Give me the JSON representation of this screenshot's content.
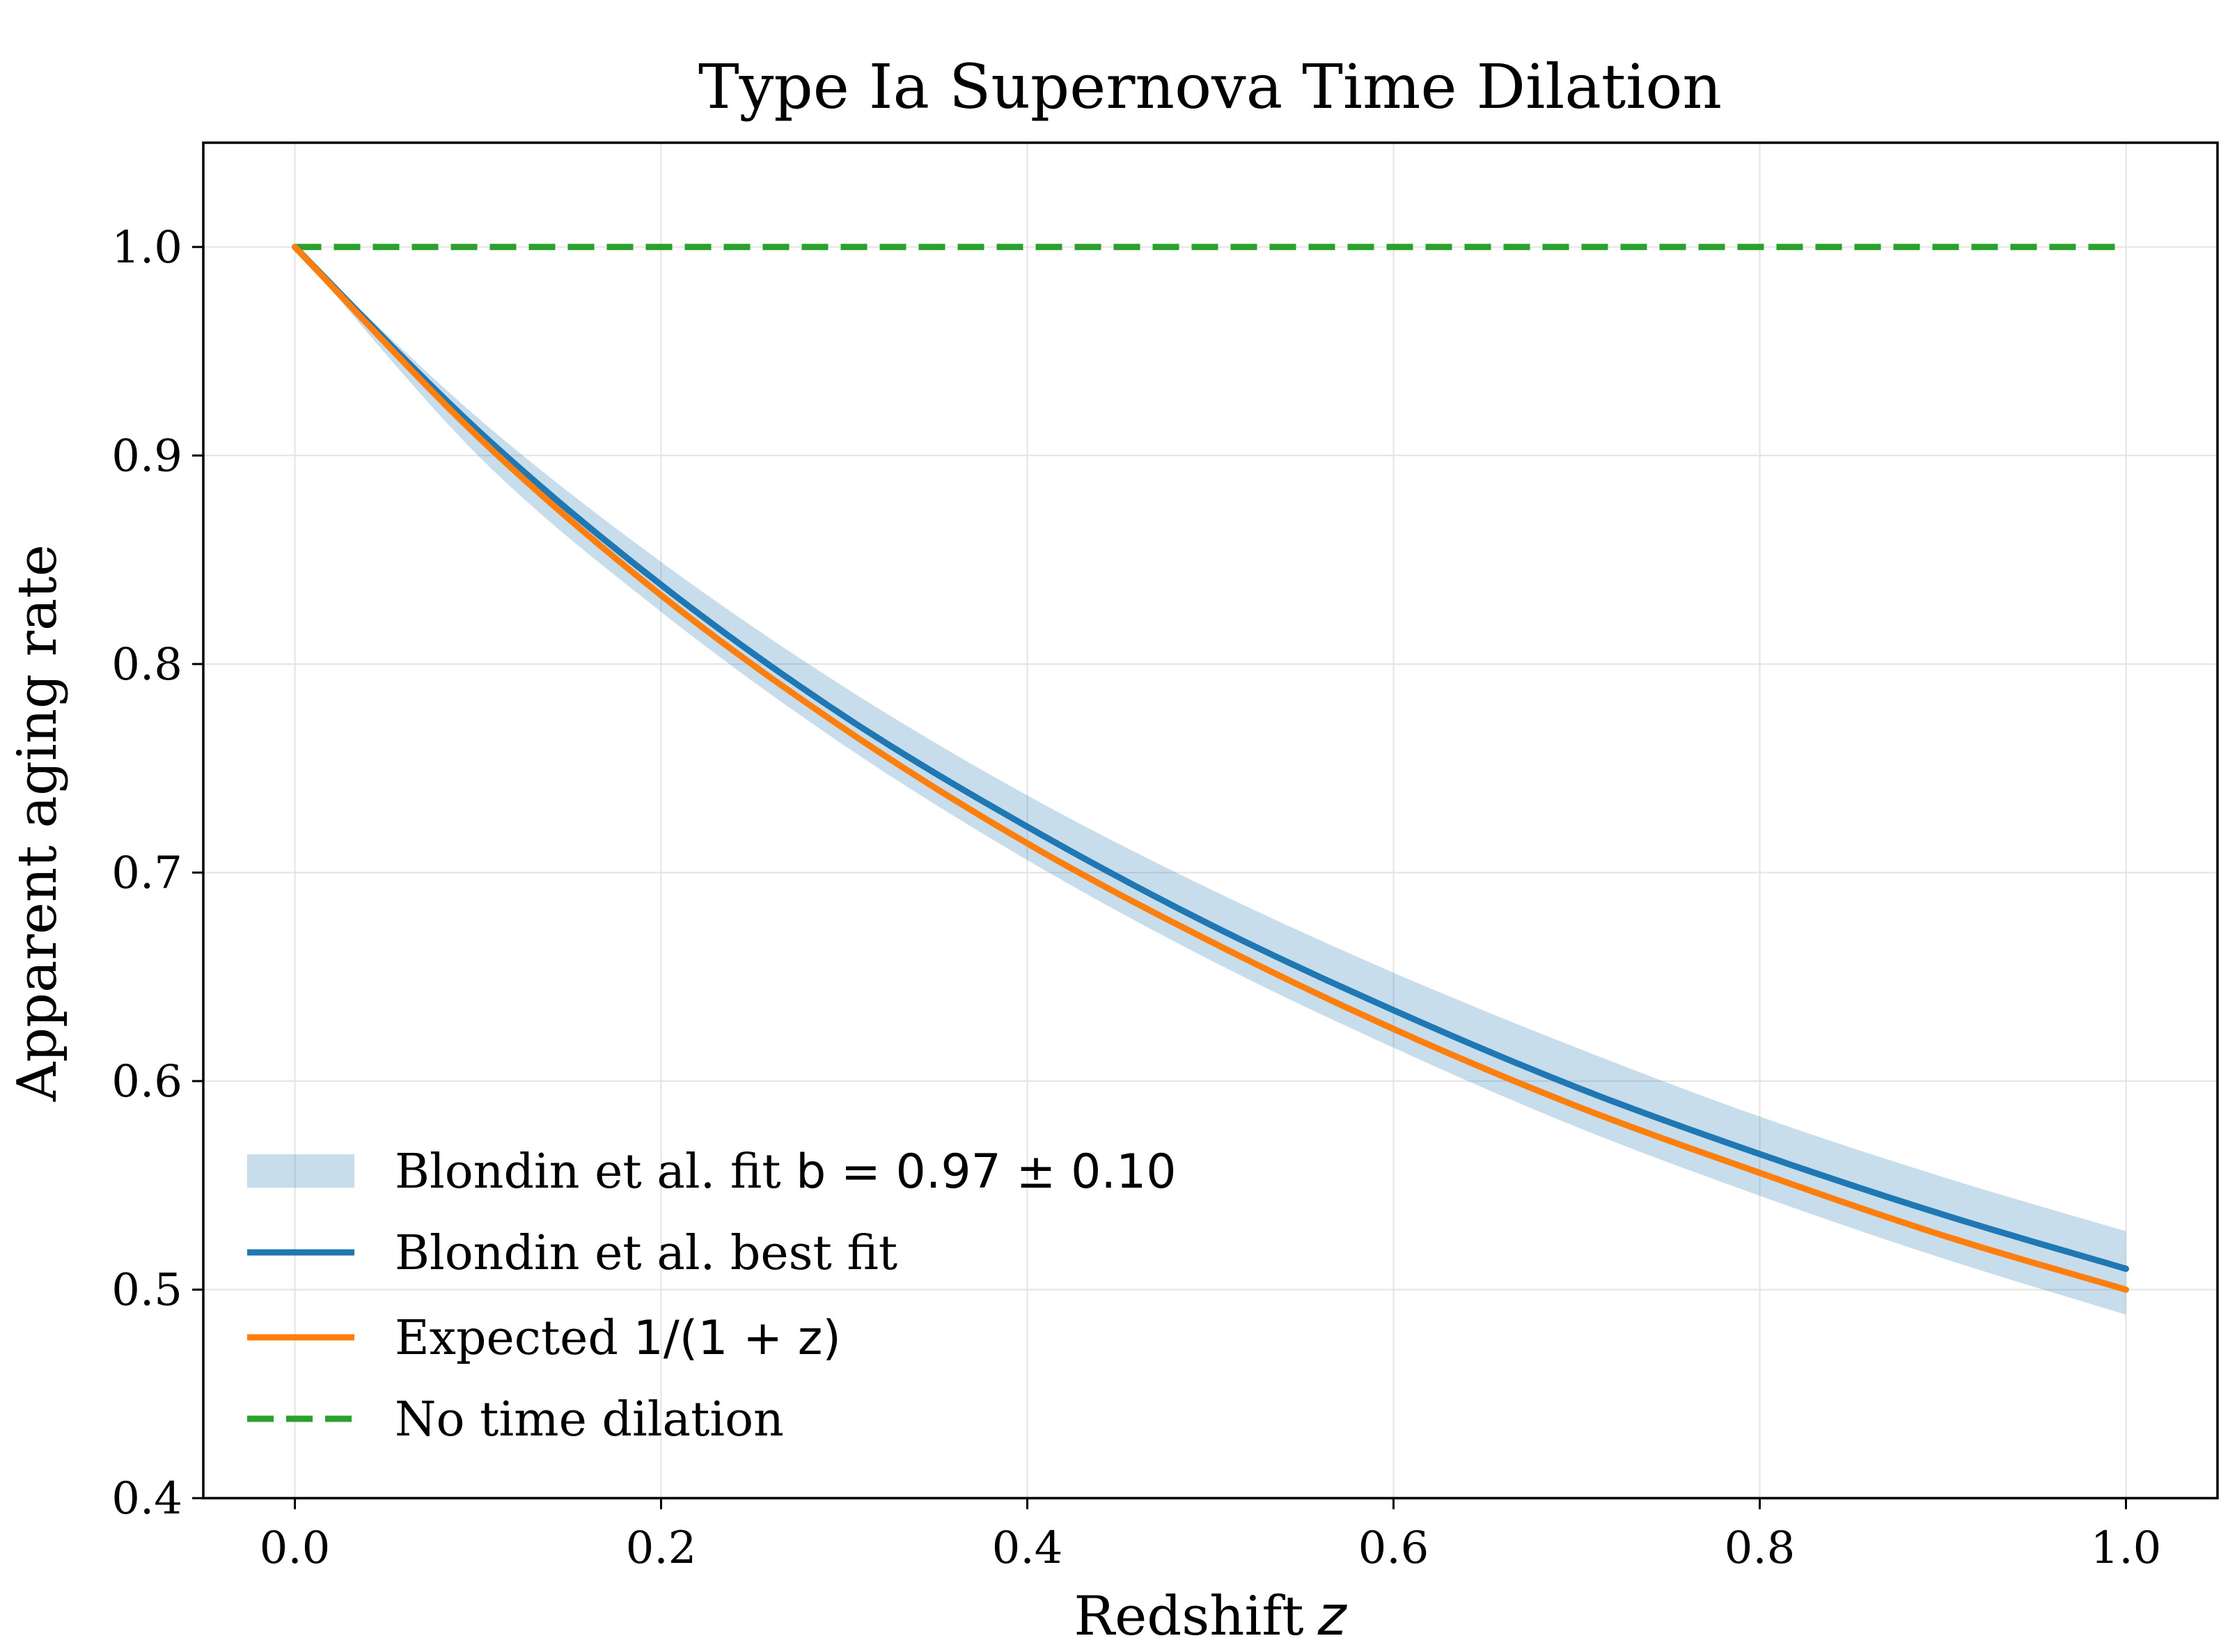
{
  "chart_data": {
    "type": "line",
    "title": "Type Ia Supernova Time Dilation",
    "xlabel": "Redshift",
    "xlabel_symbol": "z",
    "ylabel": "Apparent aging rate",
    "xlim": [
      -0.05,
      1.05
    ],
    "ylim": [
      0.4,
      1.05
    ],
    "xticks": [
      0.0,
      0.2,
      0.4,
      0.6,
      0.8,
      1.0
    ],
    "xtick_labels": [
      "0.0",
      "0.2",
      "0.4",
      "0.6",
      "0.8",
      "1.0"
    ],
    "yticks": [
      0.4,
      0.5,
      0.6,
      0.7,
      0.8,
      0.9,
      1.0
    ],
    "ytick_labels": [
      "0.4",
      "0.5",
      "0.6",
      "0.7",
      "0.8",
      "0.9",
      "1.0"
    ],
    "grid": true,
    "legend_position": "lower-left",
    "x": [
      0.0,
      0.1,
      0.2,
      0.3,
      0.4,
      0.5,
      0.6,
      0.7,
      0.8,
      0.9,
      1.0
    ],
    "band": {
      "name": "Blondin et al. fit b = 0.97 ± 0.10",
      "color": "#1f77b4",
      "opacity": 0.25,
      "lower": [
        1.0,
        0.9,
        0.825,
        0.761,
        0.706,
        0.658,
        0.616,
        0.578,
        0.545,
        0.515,
        0.488
      ],
      "upper": [
        1.0,
        0.918,
        0.849,
        0.789,
        0.737,
        0.692,
        0.652,
        0.616,
        0.583,
        0.554,
        0.528
      ]
    },
    "series": [
      {
        "name": "Blondin et al. best fit",
        "color": "#1f77b4",
        "style": "solid",
        "values": [
          1.0,
          0.912,
          0.838,
          0.775,
          0.722,
          0.675,
          0.634,
          0.597,
          0.565,
          0.536,
          0.51
        ]
      },
      {
        "name": "Expected 1/(1 + z)",
        "color": "#ff7f0e",
        "style": "solid",
        "values": [
          1.0,
          0.909,
          0.833,
          0.769,
          0.714,
          0.667,
          0.625,
          0.588,
          0.556,
          0.526,
          0.5
        ]
      },
      {
        "name": "No time dilation",
        "color": "#2ca02c",
        "style": "dashed",
        "values": [
          1.0,
          1.0,
          1.0,
          1.0,
          1.0,
          1.0,
          1.0,
          1.0,
          1.0,
          1.0,
          1.0
        ]
      }
    ],
    "legend": [
      {
        "key": "band",
        "prefix": "Blondin et al. fit ",
        "math": "b = 0.97 ± 0.10"
      },
      {
        "key": "blondin",
        "prefix": "Blondin et al. best fit",
        "math": ""
      },
      {
        "key": "expected",
        "prefix": "Expected ",
        "math": "1/(1 + z)"
      },
      {
        "key": "none",
        "prefix": "No time dilation",
        "math": ""
      }
    ]
  }
}
